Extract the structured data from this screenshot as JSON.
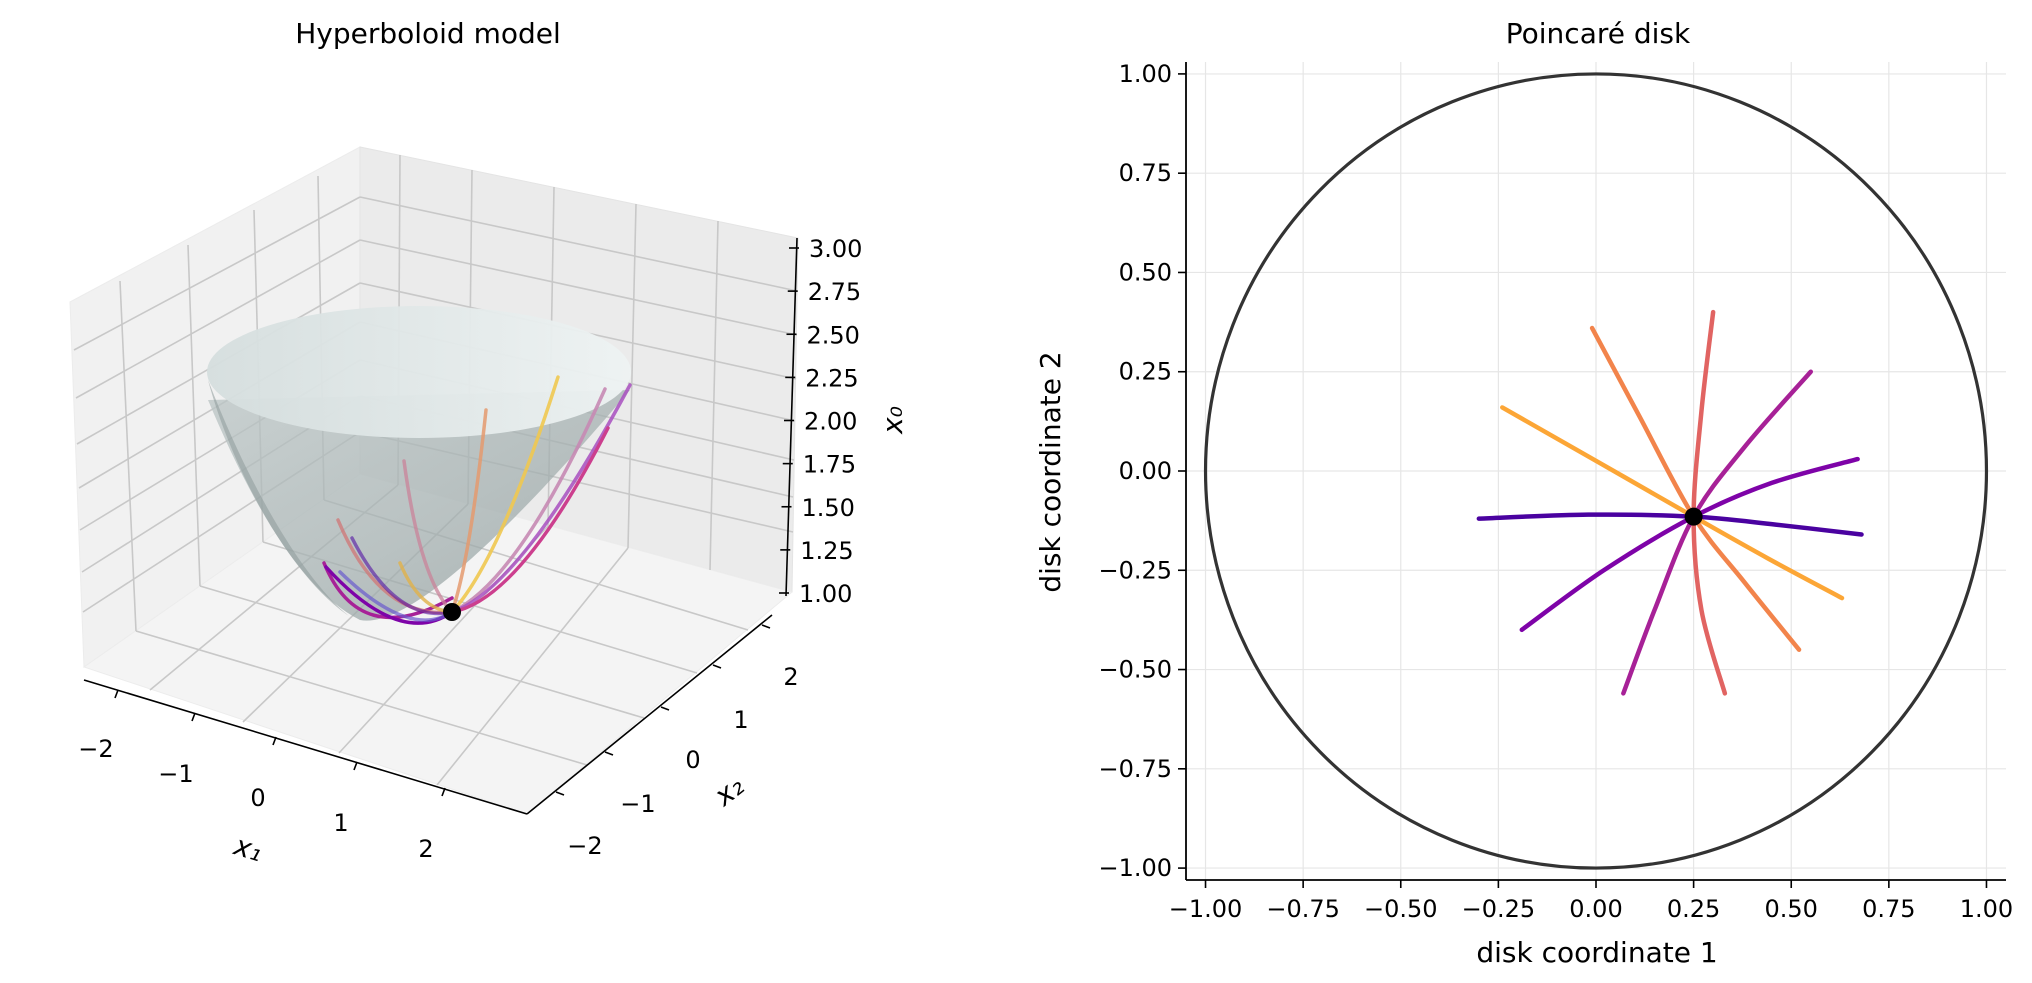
{
  "colors": {
    "cmap": [
      "#4a02a0",
      "#7e03a8",
      "#a72197",
      "#cc4778",
      "#e16462",
      "#f2844b",
      "#fca636",
      "#f6d746"
    ],
    "surface": "#a9b4b4",
    "circle": "#333333",
    "grid": "#e6e6e6",
    "point": "#000000"
  },
  "chart_data": [
    {
      "type": "surface3d",
      "title": "Hyperboloid model",
      "xlabel": "x₁",
      "ylabel": "x₂",
      "zlabel": "x₀",
      "xlim": [
        -2.5,
        2.5
      ],
      "ylim": [
        -2.5,
        2.5
      ],
      "zlim": [
        0.9,
        3.05
      ],
      "xticks": [
        -2,
        -1,
        0,
        1,
        2
      ],
      "xtick_labels": [
        "−2",
        "−1",
        "0",
        "1",
        "2"
      ],
      "yticks": [
        -2,
        -1,
        0,
        1,
        2
      ],
      "ytick_labels": [
        "−2",
        "−1",
        "0",
        "1",
        "2"
      ],
      "zticks": [
        1.0,
        1.25,
        1.5,
        1.75,
        2.0,
        2.25,
        2.5,
        2.75,
        3.0
      ],
      "ztick_labels": [
        "1.00",
        "1.25",
        "1.50",
        "1.75",
        "2.00",
        "2.25",
        "2.50",
        "2.75",
        "3.00"
      ],
      "surface": "x0 = sqrt(1 + x1^2 + x2^2)",
      "base_point": [
        0.5,
        -0.22,
        1.14
      ],
      "grid": true
    },
    {
      "type": "line",
      "title": "Poincaré disk",
      "xlabel": "disk coordinate 1",
      "ylabel": "disk coordinate 2",
      "xlim": [
        -1.05,
        1.05
      ],
      "ylim": [
        -1.03,
        1.03
      ],
      "xticks": [
        -1.0,
        -0.75,
        -0.5,
        -0.25,
        0.0,
        0.25,
        0.5,
        0.75,
        1.0
      ],
      "xtick_labels": [
        "−1.00",
        "−0.75",
        "−0.50",
        "−0.25",
        "0.00",
        "0.25",
        "0.50",
        "0.75",
        "1.00"
      ],
      "yticks": [
        -1.0,
        -0.75,
        -0.5,
        -0.25,
        0.0,
        0.25,
        0.5,
        0.75,
        1.0
      ],
      "ytick_labels": [
        "−1.00",
        "−0.75",
        "−0.50",
        "−0.25",
        "0.00",
        "0.25",
        "0.50",
        "0.75",
        "1.00"
      ],
      "grid": true,
      "unit_circle": true,
      "base_point": [
        0.25,
        -0.115
      ],
      "geodesics": [
        {
          "color_index": 0,
          "points": [
            [
              -0.3,
              -0.12
            ],
            [
              -0.02,
              -0.11
            ],
            [
              0.25,
              -0.115
            ],
            [
              0.46,
              -0.135
            ],
            [
              0.68,
              -0.16
            ]
          ]
        },
        {
          "color_index": 1,
          "points": [
            [
              -0.19,
              -0.4
            ],
            [
              0.02,
              -0.25
            ],
            [
              0.25,
              -0.115
            ],
            [
              0.45,
              -0.03
            ],
            [
              0.67,
              0.03
            ]
          ]
        },
        {
          "color_index": 2,
          "points": [
            [
              0.07,
              -0.56
            ],
            [
              0.15,
              -0.35
            ],
            [
              0.25,
              -0.115
            ],
            [
              0.38,
              0.06
            ],
            [
              0.55,
              0.25
            ]
          ]
        },
        {
          "color_index": 4,
          "points": [
            [
              0.33,
              -0.56
            ],
            [
              0.27,
              -0.35
            ],
            [
              0.25,
              -0.115
            ],
            [
              0.27,
              0.15
            ],
            [
              0.3,
              0.4
            ]
          ]
        },
        {
          "color_index": 5,
          "points": [
            [
              -0.01,
              0.36
            ],
            [
              0.11,
              0.14
            ],
            [
              0.25,
              -0.115
            ],
            [
              0.38,
              -0.28
            ],
            [
              0.52,
              -0.45
            ]
          ]
        },
        {
          "color_index": 6,
          "points": [
            [
              -0.24,
              0.16
            ],
            [
              0.01,
              0.02
            ],
            [
              0.25,
              -0.115
            ],
            [
              0.44,
              -0.22
            ],
            [
              0.63,
              -0.32
            ]
          ]
        }
      ]
    }
  ]
}
